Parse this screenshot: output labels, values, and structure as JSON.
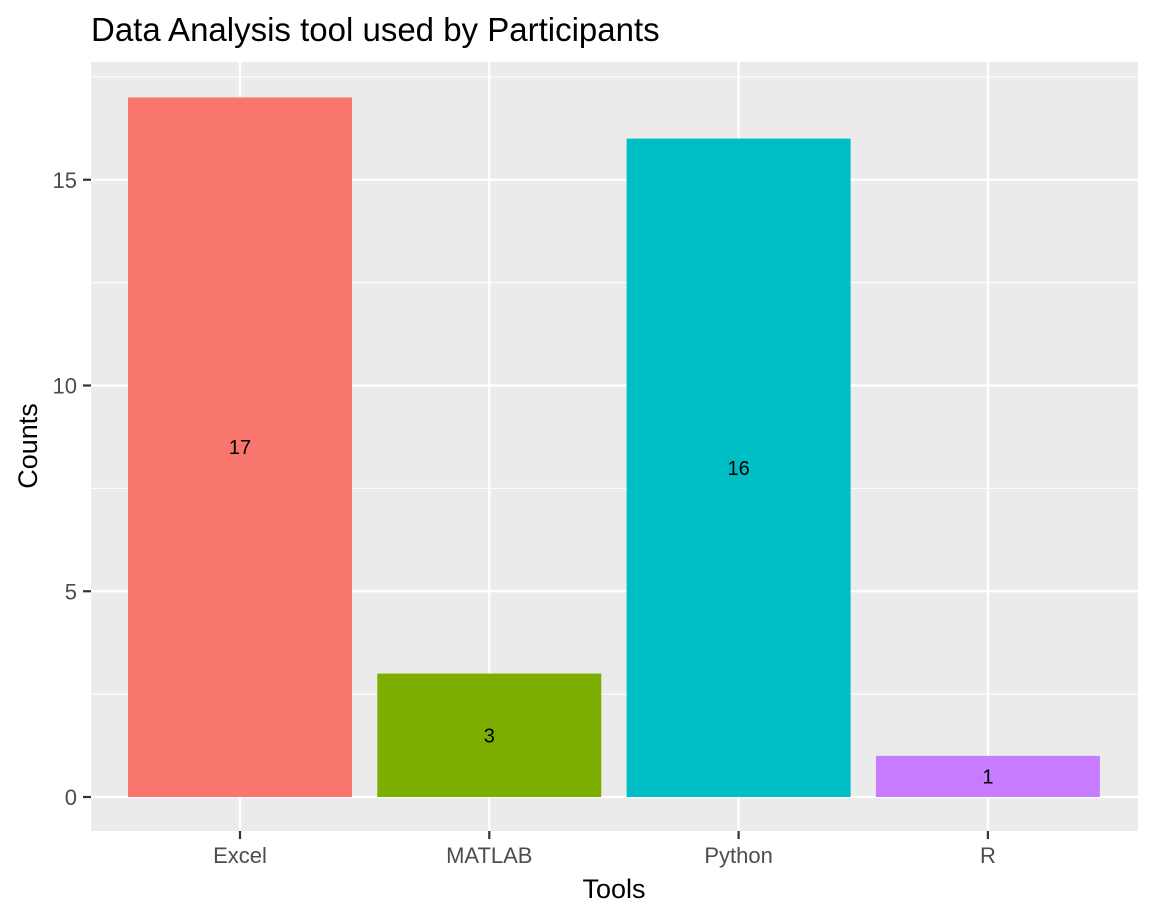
{
  "chart_data": {
    "type": "bar",
    "title": "Data Analysis tool used by Participants",
    "xlabel": "Tools",
    "ylabel": "Counts",
    "categories": [
      "Excel",
      "MATLAB",
      "Python",
      "R"
    ],
    "values": [
      17,
      3,
      16,
      1
    ],
    "data_labels": [
      "17",
      "3",
      "16",
      "1"
    ],
    "colors": [
      "#F8766D",
      "#7CAE00",
      "#00BFC4",
      "#C77CFF"
    ],
    "ylim": [
      0,
      17.85
    ],
    "yticks": [
      0,
      5,
      10,
      15
    ],
    "ytick_labels": [
      "0",
      "5",
      "10",
      "15"
    ],
    "grid": true,
    "legend": "none",
    "panel_color": "#EBEBEB",
    "grid_color": "#FFFFFF"
  }
}
